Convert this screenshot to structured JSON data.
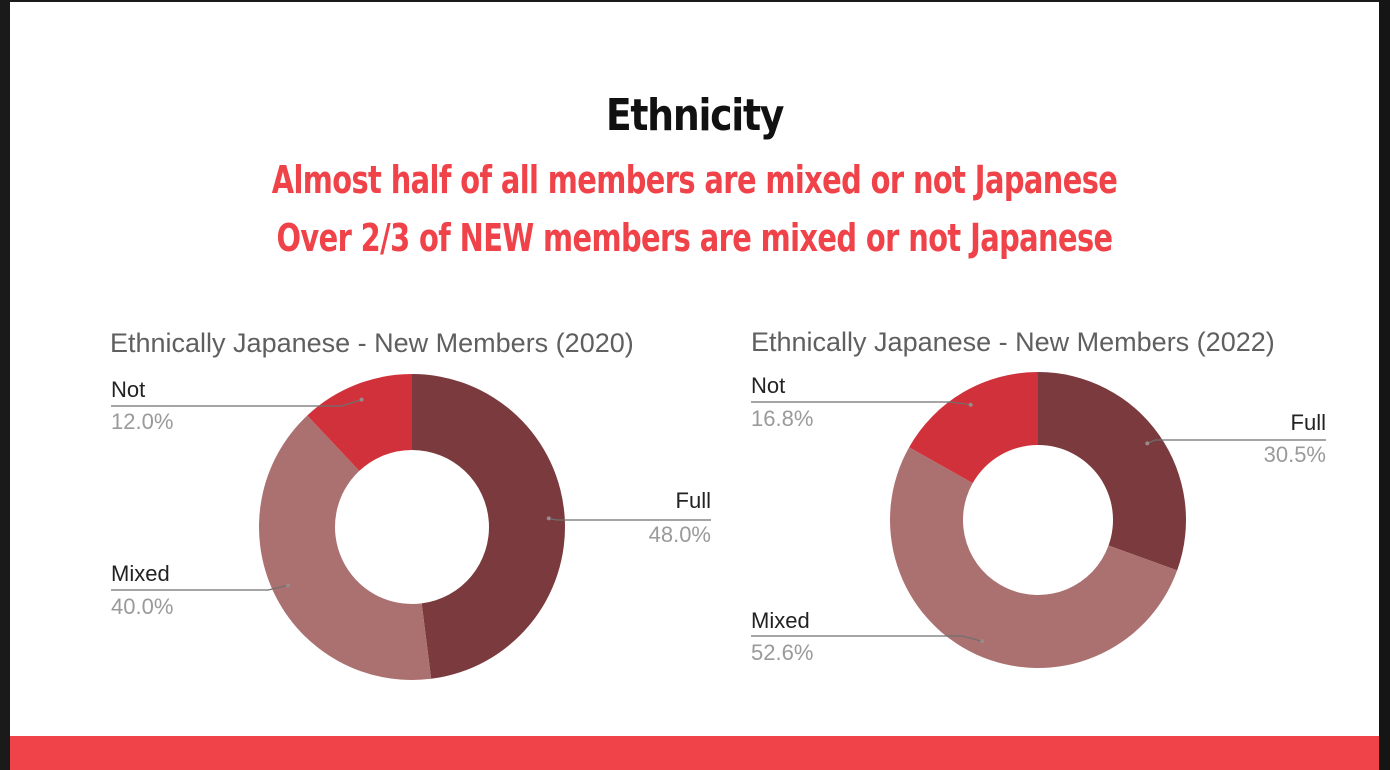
{
  "slide": {
    "title": "Ethnicity",
    "subtitle_line1": "Almost half of all members are mixed or not Japanese",
    "subtitle_line2": "Over 2/3 of NEW members are mixed or not Japanese"
  },
  "colors": {
    "title": "#111111",
    "accent": "#ef4249",
    "background": "#ffffff",
    "full": "#7a3a3e",
    "mixed": "#ab7070",
    "not": "#d1313a"
  },
  "chart_data": [
    {
      "type": "pie",
      "style": "donut",
      "title": "Ethnically Japanese - New Members (2020)",
      "slices": [
        {
          "label": "Full",
          "value": 48.0,
          "display": "48.0%"
        },
        {
          "label": "Mixed",
          "value": 40.0,
          "display": "40.0%"
        },
        {
          "label": "Not",
          "value": 12.0,
          "display": "12.0%"
        }
      ]
    },
    {
      "type": "pie",
      "style": "donut",
      "title": "Ethnically Japanese - New Members (2022)",
      "slices": [
        {
          "label": "Full",
          "value": 30.5,
          "display": "30.5%"
        },
        {
          "label": "Mixed",
          "value": 52.6,
          "display": "52.6%"
        },
        {
          "label": "Not",
          "value": 16.8,
          "display": "16.8%"
        }
      ]
    }
  ]
}
